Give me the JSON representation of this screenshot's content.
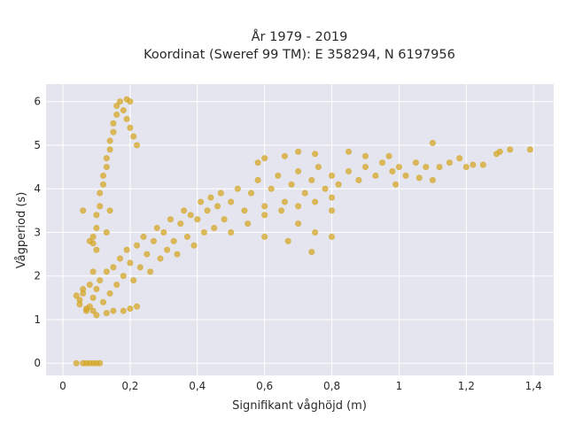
{
  "chart_data": {
    "type": "scatter",
    "title": "År 1979 - 2019",
    "subtitle": "Koordinat (Sweref 99 TM): E 358294, N 6197956",
    "xlabel": "Signifikant våghöjd (m)",
    "ylabel": "Vågperiod (s)",
    "xlim": [
      -0.05,
      1.46
    ],
    "ylim": [
      -0.28,
      6.4
    ],
    "xticks": [
      0,
      0.2,
      0.4,
      0.6,
      0.8,
      1,
      1.2,
      1.4
    ],
    "xtick_labels": [
      "0",
      "0,2",
      "0,4",
      "0,6",
      "0,8",
      "1",
      "1,2",
      "1,4"
    ],
    "yticks": [
      0,
      1,
      2,
      3,
      4,
      5,
      6
    ],
    "ytick_labels": [
      "0",
      "1",
      "2",
      "3",
      "4",
      "5",
      "6"
    ],
    "grid": true,
    "color": "#d4a520",
    "plot_background": "#e5e5ef",
    "series": [
      {
        "points": [
          [
            0.04,
            1.55
          ],
          [
            0.05,
            1.45
          ],
          [
            0.06,
            1.6
          ],
          [
            0.08,
            1.3
          ],
          [
            0.07,
            1.2
          ],
          [
            0.09,
            1.5
          ],
          [
            0.1,
            1.7
          ],
          [
            0.12,
            1.4
          ],
          [
            0.11,
            1.9
          ],
          [
            0.13,
            2.1
          ],
          [
            0.14,
            1.6
          ],
          [
            0.15,
            2.2
          ],
          [
            0.16,
            1.8
          ],
          [
            0.17,
            2.4
          ],
          [
            0.18,
            2.0
          ],
          [
            0.19,
            2.6
          ],
          [
            0.2,
            2.3
          ],
          [
            0.21,
            1.9
          ],
          [
            0.22,
            2.7
          ],
          [
            0.23,
            2.2
          ],
          [
            0.24,
            2.9
          ],
          [
            0.25,
            2.5
          ],
          [
            0.26,
            2.1
          ],
          [
            0.27,
            2.8
          ],
          [
            0.28,
            3.1
          ],
          [
            0.29,
            2.4
          ],
          [
            0.3,
            3.0
          ],
          [
            0.31,
            2.6
          ],
          [
            0.32,
            3.3
          ],
          [
            0.33,
            2.8
          ],
          [
            0.34,
            2.5
          ],
          [
            0.35,
            3.2
          ],
          [
            0.36,
            3.5
          ],
          [
            0.37,
            2.9
          ],
          [
            0.38,
            3.4
          ],
          [
            0.39,
            2.7
          ],
          [
            0.4,
            3.3
          ],
          [
            0.41,
            3.7
          ],
          [
            0.42,
            3.0
          ],
          [
            0.43,
            3.5
          ],
          [
            0.44,
            3.8
          ],
          [
            0.45,
            3.1
          ],
          [
            0.46,
            3.6
          ],
          [
            0.47,
            3.9
          ],
          [
            0.48,
            3.3
          ],
          [
            0.5,
            3.7
          ],
          [
            0.52,
            4.0
          ],
          [
            0.54,
            3.5
          ],
          [
            0.56,
            3.9
          ],
          [
            0.58,
            4.2
          ],
          [
            0.6,
            3.6
          ],
          [
            0.62,
            4.0
          ],
          [
            0.64,
            4.3
          ],
          [
            0.66,
            3.7
          ],
          [
            0.68,
            4.1
          ],
          [
            0.7,
            4.4
          ],
          [
            0.72,
            3.9
          ],
          [
            0.74,
            4.2
          ],
          [
            0.76,
            4.5
          ],
          [
            0.78,
            4.0
          ],
          [
            0.8,
            4.3
          ],
          [
            0.82,
            4.1
          ],
          [
            0.85,
            4.4
          ],
          [
            0.88,
            4.2
          ],
          [
            0.9,
            4.5
          ],
          [
            0.93,
            4.3
          ],
          [
            0.95,
            4.6
          ],
          [
            0.98,
            4.4
          ],
          [
            1.0,
            4.5
          ],
          [
            1.02,
            4.3
          ],
          [
            1.05,
            4.6
          ],
          [
            1.08,
            4.5
          ],
          [
            1.1,
            5.05
          ],
          [
            1.12,
            4.5
          ],
          [
            1.15,
            4.6
          ],
          [
            1.18,
            4.7
          ],
          [
            1.2,
            4.5
          ],
          [
            1.22,
            4.55
          ],
          [
            1.25,
            4.55
          ],
          [
            1.3,
            4.85
          ],
          [
            1.33,
            4.9
          ],
          [
            1.39,
            4.9
          ],
          [
            1.29,
            4.8
          ],
          [
            1.1,
            4.2
          ],
          [
            1.06,
            4.25
          ],
          [
            0.99,
            4.1
          ],
          [
            0.97,
            4.75
          ],
          [
            0.9,
            4.75
          ],
          [
            0.85,
            4.85
          ],
          [
            0.75,
            4.8
          ],
          [
            0.7,
            4.85
          ],
          [
            0.66,
            4.75
          ],
          [
            0.6,
            4.7
          ],
          [
            0.58,
            4.6
          ],
          [
            0.5,
            3.0
          ],
          [
            0.55,
            3.2
          ],
          [
            0.6,
            3.4
          ],
          [
            0.65,
            3.5
          ],
          [
            0.7,
            3.6
          ],
          [
            0.75,
            3.7
          ],
          [
            0.8,
            3.8
          ],
          [
            0.6,
            2.9
          ],
          [
            0.7,
            3.2
          ],
          [
            0.8,
            3.5
          ],
          [
            0.74,
            2.55
          ],
          [
            0.8,
            2.9
          ],
          [
            0.67,
            2.8
          ],
          [
            0.75,
            3.0
          ],
          [
            0.09,
            2.75
          ],
          [
            0.09,
            2.9
          ],
          [
            0.1,
            3.1
          ],
          [
            0.1,
            3.4
          ],
          [
            0.11,
            3.6
          ],
          [
            0.11,
            3.9
          ],
          [
            0.12,
            4.1
          ],
          [
            0.12,
            4.3
          ],
          [
            0.13,
            4.5
          ],
          [
            0.13,
            4.7
          ],
          [
            0.14,
            4.9
          ],
          [
            0.14,
            5.1
          ],
          [
            0.15,
            5.3
          ],
          [
            0.15,
            5.5
          ],
          [
            0.16,
            5.7
          ],
          [
            0.16,
            5.9
          ],
          [
            0.17,
            6.0
          ],
          [
            0.18,
            5.8
          ],
          [
            0.19,
            5.6
          ],
          [
            0.2,
            5.4
          ],
          [
            0.21,
            5.2
          ],
          [
            0.22,
            5.0
          ],
          [
            0.2,
            6.0
          ],
          [
            0.19,
            6.05
          ],
          [
            0.08,
            2.8
          ],
          [
            0.06,
            3.5
          ],
          [
            0.1,
            2.6
          ],
          [
            0.13,
            3.0
          ],
          [
            0.14,
            3.5
          ],
          [
            0.04,
            0.0
          ],
          [
            0.06,
            0.0
          ],
          [
            0.07,
            0.0
          ],
          [
            0.08,
            0.0
          ],
          [
            0.09,
            0.0
          ],
          [
            0.1,
            0.0
          ],
          [
            0.11,
            0.0
          ],
          [
            0.07,
            1.25
          ],
          [
            0.09,
            1.2
          ],
          [
            0.1,
            1.1
          ],
          [
            0.13,
            1.15
          ],
          [
            0.15,
            1.2
          ],
          [
            0.18,
            1.2
          ],
          [
            0.2,
            1.25
          ],
          [
            0.22,
            1.3
          ],
          [
            0.05,
            1.35
          ],
          [
            0.06,
            1.7
          ],
          [
            0.08,
            1.8
          ],
          [
            0.09,
            2.1
          ]
        ]
      }
    ]
  }
}
